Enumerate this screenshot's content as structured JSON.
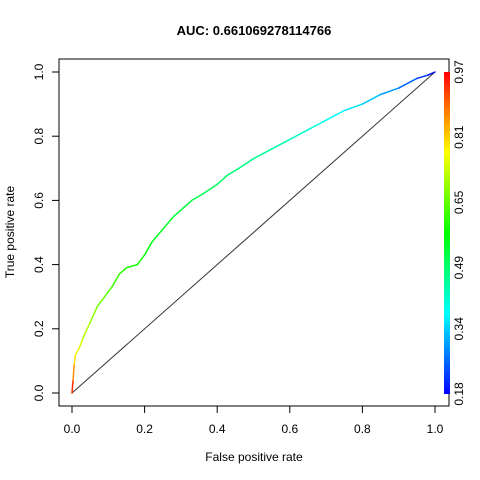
{
  "chart_data": {
    "type": "line",
    "title": "AUC: 0.661069278114766",
    "xlabel": "False positive rate",
    "ylabel": "True positive rate",
    "xlim": [
      0,
      1
    ],
    "ylim": [
      0,
      1
    ],
    "x_ticks": [
      "0.0",
      "0.2",
      "0.4",
      "0.6",
      "0.8",
      "1.0"
    ],
    "y_ticks": [
      "0.0",
      "0.2",
      "0.4",
      "0.6",
      "0.8",
      "1.0"
    ],
    "colorbar": {
      "label_values": [
        "0.18",
        "0.34",
        "0.49",
        "0.65",
        "0.81",
        "0.97"
      ],
      "range": [
        0.18,
        0.97
      ],
      "colors": [
        "#0000ff",
        "#00ffff",
        "#00ff00",
        "#ffff00",
        "#ff0000"
      ]
    },
    "diagonal": {
      "x": [
        0,
        1
      ],
      "y": [
        0,
        1
      ],
      "color": "#333333"
    },
    "series": [
      {
        "x": [
          0.0,
          0.003,
          0.006,
          0.01,
          0.02,
          0.03,
          0.05,
          0.07,
          0.09,
          0.11,
          0.13,
          0.15,
          0.18,
          0.2,
          0.22,
          0.25,
          0.28,
          0.3,
          0.33,
          0.36,
          0.4,
          0.43,
          0.46,
          0.5,
          0.55,
          0.6,
          0.65,
          0.7,
          0.75,
          0.8,
          0.85,
          0.9,
          0.95,
          0.98,
          1.0
        ],
        "y": [
          0.0,
          0.04,
          0.09,
          0.12,
          0.14,
          0.17,
          0.22,
          0.27,
          0.3,
          0.33,
          0.37,
          0.39,
          0.4,
          0.43,
          0.47,
          0.51,
          0.55,
          0.57,
          0.6,
          0.62,
          0.65,
          0.68,
          0.7,
          0.73,
          0.76,
          0.79,
          0.82,
          0.85,
          0.88,
          0.9,
          0.93,
          0.95,
          0.98,
          0.99,
          1.0
        ],
        "cutoff": [
          0.97,
          0.9,
          0.82,
          0.77,
          0.75,
          0.73,
          0.7,
          0.67,
          0.65,
          0.63,
          0.61,
          0.6,
          0.59,
          0.58,
          0.56,
          0.55,
          0.54,
          0.53,
          0.52,
          0.51,
          0.5,
          0.49,
          0.48,
          0.47,
          0.45,
          0.43,
          0.41,
          0.39,
          0.37,
          0.35,
          0.32,
          0.28,
          0.24,
          0.2,
          0.18
        ]
      }
    ]
  }
}
